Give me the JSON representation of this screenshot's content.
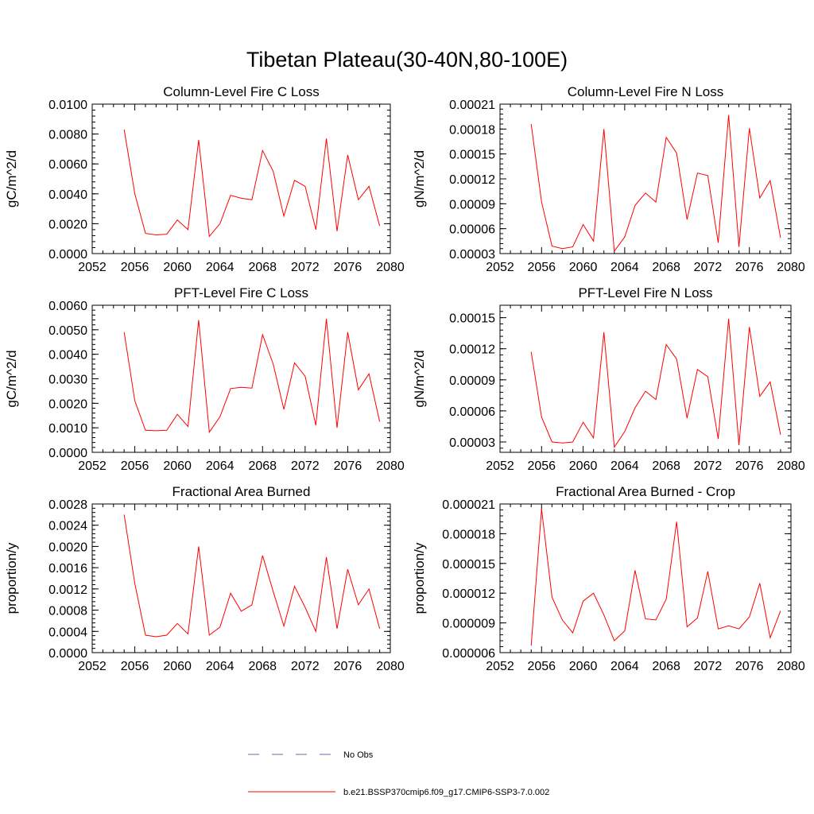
{
  "figure": {
    "title": "Tibetan Plateau(30-40N,80-100E)"
  },
  "legend": {
    "items": [
      {
        "label": "No Obs",
        "color": "#6a6aa8",
        "dash": true
      },
      {
        "label": "b.e21.BSSP370cmip6.f09_g17.CMIP6-SSP3-7.0.002",
        "color": "#ff0000",
        "dash": false
      }
    ]
  },
  "chart_data": [
    {
      "type": "line",
      "title": "Column-Level Fire C Loss",
      "ylabel": "gC/m^2/d",
      "xlim": [
        2052,
        2080
      ],
      "ylim": [
        0,
        0.01
      ],
      "xticks": [
        "2052",
        "2056",
        "2060",
        "2064",
        "2068",
        "2072",
        "2076",
        "2080"
      ],
      "yticks": [
        "0.0000",
        "0.0020",
        "0.0040",
        "0.0060",
        "0.0080",
        "0.0100"
      ],
      "series": [
        {
          "color": "#ff0000",
          "x": [
            2055,
            2056,
            2057,
            2058,
            2059,
            2060,
            2061,
            2062,
            2063,
            2064,
            2065,
            2066,
            2067,
            2068,
            2069,
            2070,
            2071,
            2072,
            2073,
            2074,
            2075,
            2076,
            2077,
            2078,
            2079
          ],
          "values": [
            0.0083,
            0.004,
            0.00135,
            0.00125,
            0.0013,
            0.00225,
            0.0016,
            0.0076,
            0.00115,
            0.002,
            0.0039,
            0.0037,
            0.0036,
            0.0069,
            0.0055,
            0.0025,
            0.0049,
            0.0045,
            0.0016,
            0.0077,
            0.0015,
            0.0066,
            0.0036,
            0.0045,
            0.00185
          ]
        }
      ]
    },
    {
      "type": "line",
      "title": "Column-Level Fire N Loss",
      "ylabel": "gN/m^2/d",
      "xlim": [
        2052,
        2080
      ],
      "ylim": [
        3e-05,
        0.00021
      ],
      "xticks": [
        "2052",
        "2056",
        "2060",
        "2064",
        "2068",
        "2072",
        "2076",
        "2080"
      ],
      "yticks": [
        "0.00003",
        "0.00006",
        "0.00009",
        "0.00012",
        "0.00015",
        "0.00018",
        "0.00021"
      ],
      "series": [
        {
          "color": "#ff0000",
          "x": [
            2055,
            2056,
            2057,
            2058,
            2059,
            2060,
            2061,
            2062,
            2063,
            2064,
            2065,
            2066,
            2067,
            2068,
            2069,
            2070,
            2071,
            2072,
            2073,
            2074,
            2075,
            2076,
            2077,
            2078,
            2079
          ],
          "values": [
            0.000186,
            9.2e-05,
            3.9e-05,
            3.6e-05,
            3.8e-05,
            6.5e-05,
            4.5e-05,
            0.00018,
            3.3e-05,
            5e-05,
            8.8e-05,
            0.000103,
            9.2e-05,
            0.00017,
            0.000151,
            7.1e-05,
            0.000127,
            0.000124,
            4.3e-05,
            0.000197,
            3.8e-05,
            0.000181,
            9.7e-05,
            0.000118,
            4.9e-05
          ]
        }
      ]
    },
    {
      "type": "line",
      "title": "PFT-Level Fire C Loss",
      "ylabel": "gC/m^2/d",
      "xlim": [
        2052,
        2080
      ],
      "ylim": [
        0,
        0.006
      ],
      "xticks": [
        "2052",
        "2056",
        "2060",
        "2064",
        "2068",
        "2072",
        "2076",
        "2080"
      ],
      "yticks": [
        "0.0000",
        "0.0010",
        "0.0020",
        "0.0030",
        "0.0040",
        "0.0050",
        "0.0060"
      ],
      "series": [
        {
          "color": "#ff0000",
          "x": [
            2055,
            2056,
            2057,
            2058,
            2059,
            2060,
            2061,
            2062,
            2063,
            2064,
            2065,
            2066,
            2067,
            2068,
            2069,
            2070,
            2071,
            2072,
            2073,
            2074,
            2075,
            2076,
            2077,
            2078,
            2079
          ],
          "values": [
            0.0049,
            0.0021,
            0.0009,
            0.00088,
            0.0009,
            0.00155,
            0.00105,
            0.0054,
            0.00082,
            0.00145,
            0.0026,
            0.00265,
            0.00262,
            0.0048,
            0.0036,
            0.00175,
            0.00365,
            0.0031,
            0.0011,
            0.00545,
            0.001,
            0.0049,
            0.00255,
            0.0032,
            0.00125
          ]
        }
      ]
    },
    {
      "type": "line",
      "title": "PFT-Level Fire N Loss",
      "ylabel": "gN/m^2/d",
      "xlim": [
        2052,
        2080
      ],
      "ylim": [
        2e-05,
        0.000162
      ],
      "xticks": [
        "2052",
        "2056",
        "2060",
        "2064",
        "2068",
        "2072",
        "2076",
        "2080"
      ],
      "yticks": [
        "0.00003",
        "0.00006",
        "0.00009",
        "0.00012",
        "0.00015"
      ],
      "series": [
        {
          "color": "#ff0000",
          "x": [
            2055,
            2056,
            2057,
            2058,
            2059,
            2060,
            2061,
            2062,
            2063,
            2064,
            2065,
            2066,
            2067,
            2068,
            2069,
            2070,
            2071,
            2072,
            2073,
            2074,
            2075,
            2076,
            2077,
            2078,
            2079
          ],
          "values": [
            0.000117,
            5.4e-05,
            3e-05,
            2.9e-05,
            3e-05,
            4.9e-05,
            3.4e-05,
            0.000136,
            2.5e-05,
            4e-05,
            6.3e-05,
            7.9e-05,
            7.1e-05,
            0.000124,
            0.00011,
            5.3e-05,
            0.0001,
            9.3e-05,
            3.3e-05,
            0.000149,
            2.7e-05,
            0.000141,
            7.4e-05,
            8.8e-05,
            3.7e-05
          ]
        }
      ]
    },
    {
      "type": "line",
      "title": "Fractional Area Burned",
      "ylabel": "proportion/y",
      "xlim": [
        2052,
        2080
      ],
      "ylim": [
        0,
        0.0028
      ],
      "xticks": [
        "2052",
        "2056",
        "2060",
        "2064",
        "2068",
        "2072",
        "2076",
        "2080"
      ],
      "yticks": [
        "0.0000",
        "0.0004",
        "0.0008",
        "0.0012",
        "0.0016",
        "0.0020",
        "0.0024",
        "0.0028"
      ],
      "series": [
        {
          "color": "#ff0000",
          "x": [
            2055,
            2056,
            2057,
            2058,
            2059,
            2060,
            2061,
            2062,
            2063,
            2064,
            2065,
            2066,
            2067,
            2068,
            2069,
            2070,
            2071,
            2072,
            2073,
            2074,
            2075,
            2076,
            2077,
            2078,
            2079
          ],
          "values": [
            0.0026,
            0.0013,
            0.00033,
            0.0003,
            0.00033,
            0.00055,
            0.00035,
            0.002,
            0.00033,
            0.00048,
            0.00112,
            0.00078,
            0.0009,
            0.00183,
            0.00115,
            0.0005,
            0.00125,
            0.00085,
            0.0004,
            0.0018,
            0.00045,
            0.00157,
            0.0009,
            0.0012,
            0.00045
          ]
        }
      ]
    },
    {
      "type": "line",
      "title": "Fractional Area Burned - Crop",
      "ylabel": "proportion/y",
      "xlim": [
        2052,
        2080
      ],
      "ylim": [
        6e-06,
        2.1e-05
      ],
      "xticks": [
        "2052",
        "2056",
        "2060",
        "2064",
        "2068",
        "2072",
        "2076",
        "2080"
      ],
      "yticks": [
        "0.000006",
        "0.000009",
        "0.000012",
        "0.000015",
        "0.000018",
        "0.000021"
      ],
      "series": [
        {
          "color": "#ff0000",
          "x": [
            2055,
            2056,
            2057,
            2058,
            2059,
            2060,
            2061,
            2062,
            2063,
            2064,
            2065,
            2066,
            2067,
            2068,
            2069,
            2070,
            2071,
            2072,
            2073,
            2074,
            2075,
            2076,
            2077,
            2078,
            2079
          ],
          "values": [
            6.7e-06,
            2.05e-05,
            1.16e-05,
            9.3e-06,
            8e-06,
            1.12e-05,
            1.2e-05,
            9.8e-06,
            7.2e-06,
            8.2e-06,
            1.43e-05,
            9.4e-06,
            9.3e-06,
            1.14e-05,
            1.92e-05,
            8.6e-06,
            9.5e-06,
            1.42e-05,
            8.4e-06,
            8.7e-06,
            8.4e-06,
            9.6e-06,
            1.3e-05,
            7.5e-06,
            1.02e-05
          ]
        }
      ]
    }
  ]
}
